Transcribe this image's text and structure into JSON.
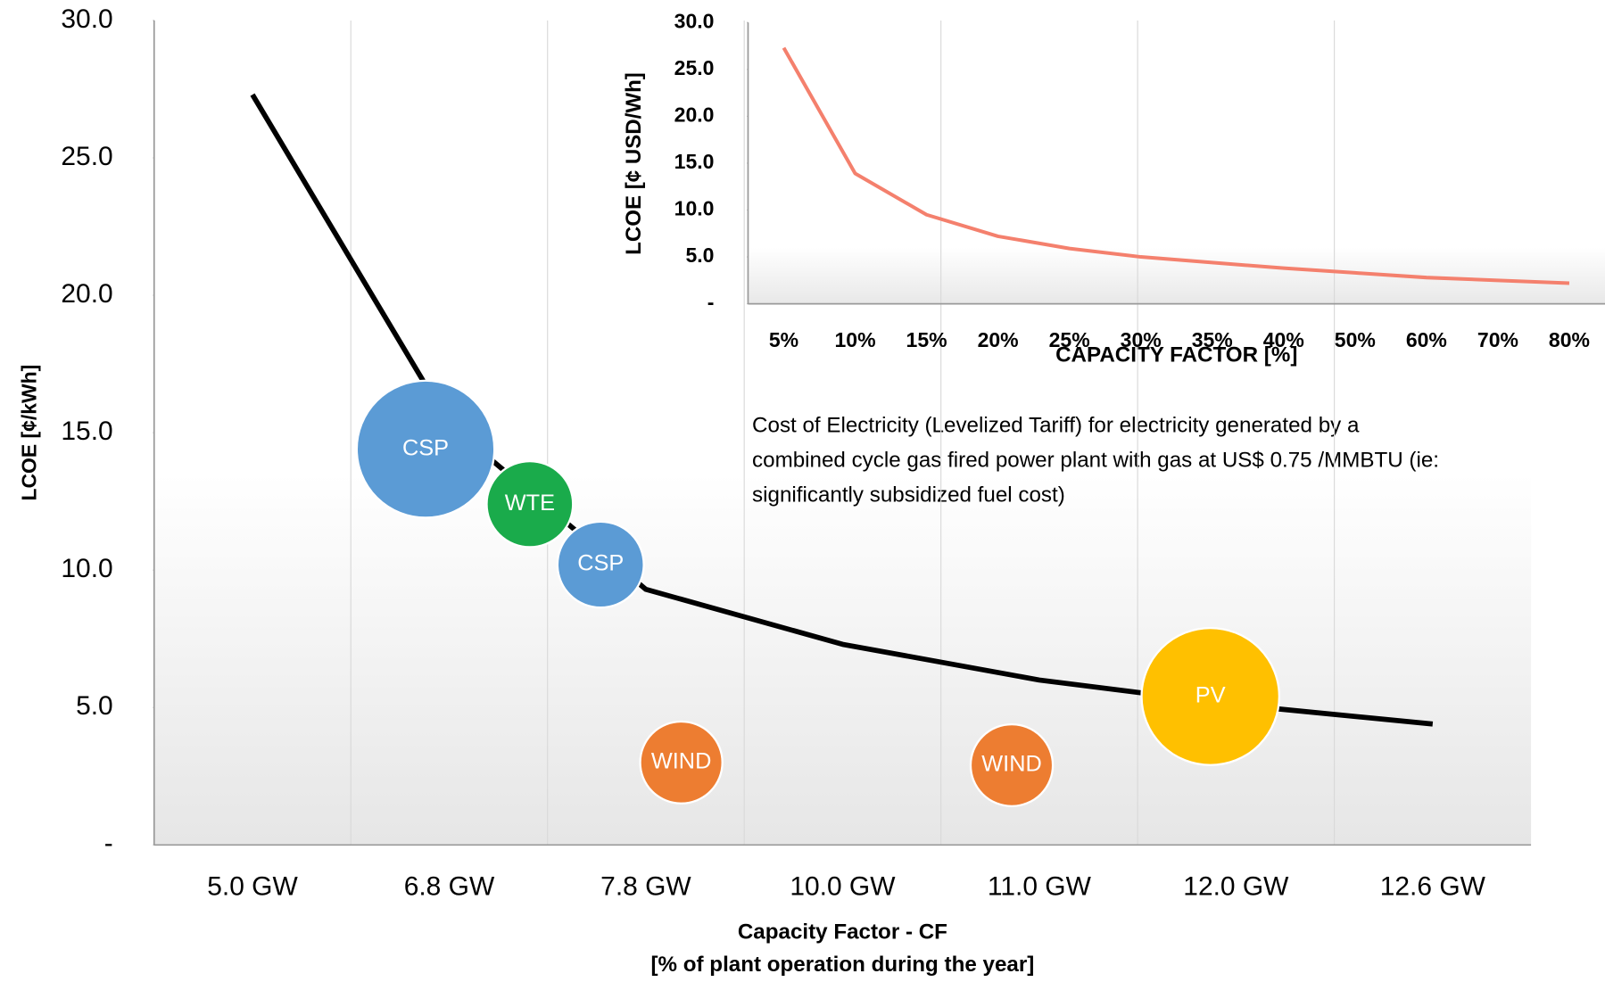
{
  "chart_data": [
    {
      "type": "line",
      "y_label": "LCOE [¢/kWh]",
      "x_label": [
        "Capacity Factor - CF",
        "[% of plant operation during the year]"
      ],
      "categories": [
        "5.0 GW",
        "6.8 GW",
        "7.8 GW",
        "10.0 GW",
        "11.0 GW",
        "12.0 GW",
        "12.6 GW"
      ],
      "values": [
        27.3,
        15.3,
        9.3,
        7.3,
        6.0,
        5.1,
        4.4
      ],
      "color": "#000000",
      "ylim": [
        0,
        30
      ],
      "yticks": [
        {
          "value": 0,
          "label": "-"
        },
        {
          "value": 5,
          "label": "5.0"
        },
        {
          "value": 10,
          "label": "10.0"
        },
        {
          "value": 15,
          "label": "15.0"
        },
        {
          "value": 20,
          "label": "20.0"
        },
        {
          "value": 25,
          "label": "25.0"
        },
        {
          "value": 30,
          "label": "30.0"
        }
      ],
      "bubbles": {
        "labels": [
          "CSP",
          "WTE",
          "CSP",
          "WIND",
          "WIND",
          "PV"
        ],
        "x": [
          0.88,
          1.41,
          1.77,
          2.18,
          3.86,
          4.87
        ],
        "y": [
          14.4,
          12.4,
          10.2,
          3.0,
          2.9,
          5.4
        ],
        "sizes": [
          67,
          42,
          42,
          40,
          40,
          67
        ],
        "colors": [
          "#5b9bd5",
          "#1aab4b",
          "#5b9bd5",
          "#ed7d31",
          "#ed7d31",
          "#ffc000"
        ]
      }
    },
    {
      "type": "line",
      "y_label": "LCOE [¢ USD/Wh]",
      "x_label": "CAPACITY FACTOR [%]",
      "categories": [
        "5%",
        "10%",
        "15%",
        "20%",
        "25%",
        "30%",
        "35%",
        "40%",
        "50%",
        "60%",
        "70%",
        "80%"
      ],
      "values": [
        27.3,
        13.9,
        9.5,
        7.2,
        5.9,
        5.0,
        4.4,
        3.8,
        3.3,
        2.8,
        2.5,
        2.2
      ],
      "color": "#f4806d",
      "ylim": [
        0,
        30
      ],
      "yticks": [
        {
          "value": 0,
          "label": "-"
        },
        {
          "value": 5,
          "label": "5.0"
        },
        {
          "value": 10,
          "label": "10.0"
        },
        {
          "value": 15,
          "label": "15.0"
        },
        {
          "value": 20,
          "label": "20.0"
        },
        {
          "value": 25,
          "label": "25.0"
        },
        {
          "value": 30,
          "label": "30.0"
        }
      ],
      "annotation": [
        "Cost of Electricity (Levelized Tariff) for electricity generated by a",
        "combined cycle gas fired power plant with gas at US$ 0.75 /MMBTU (ie:",
        "significantly subsidized fuel cost)"
      ]
    }
  ]
}
